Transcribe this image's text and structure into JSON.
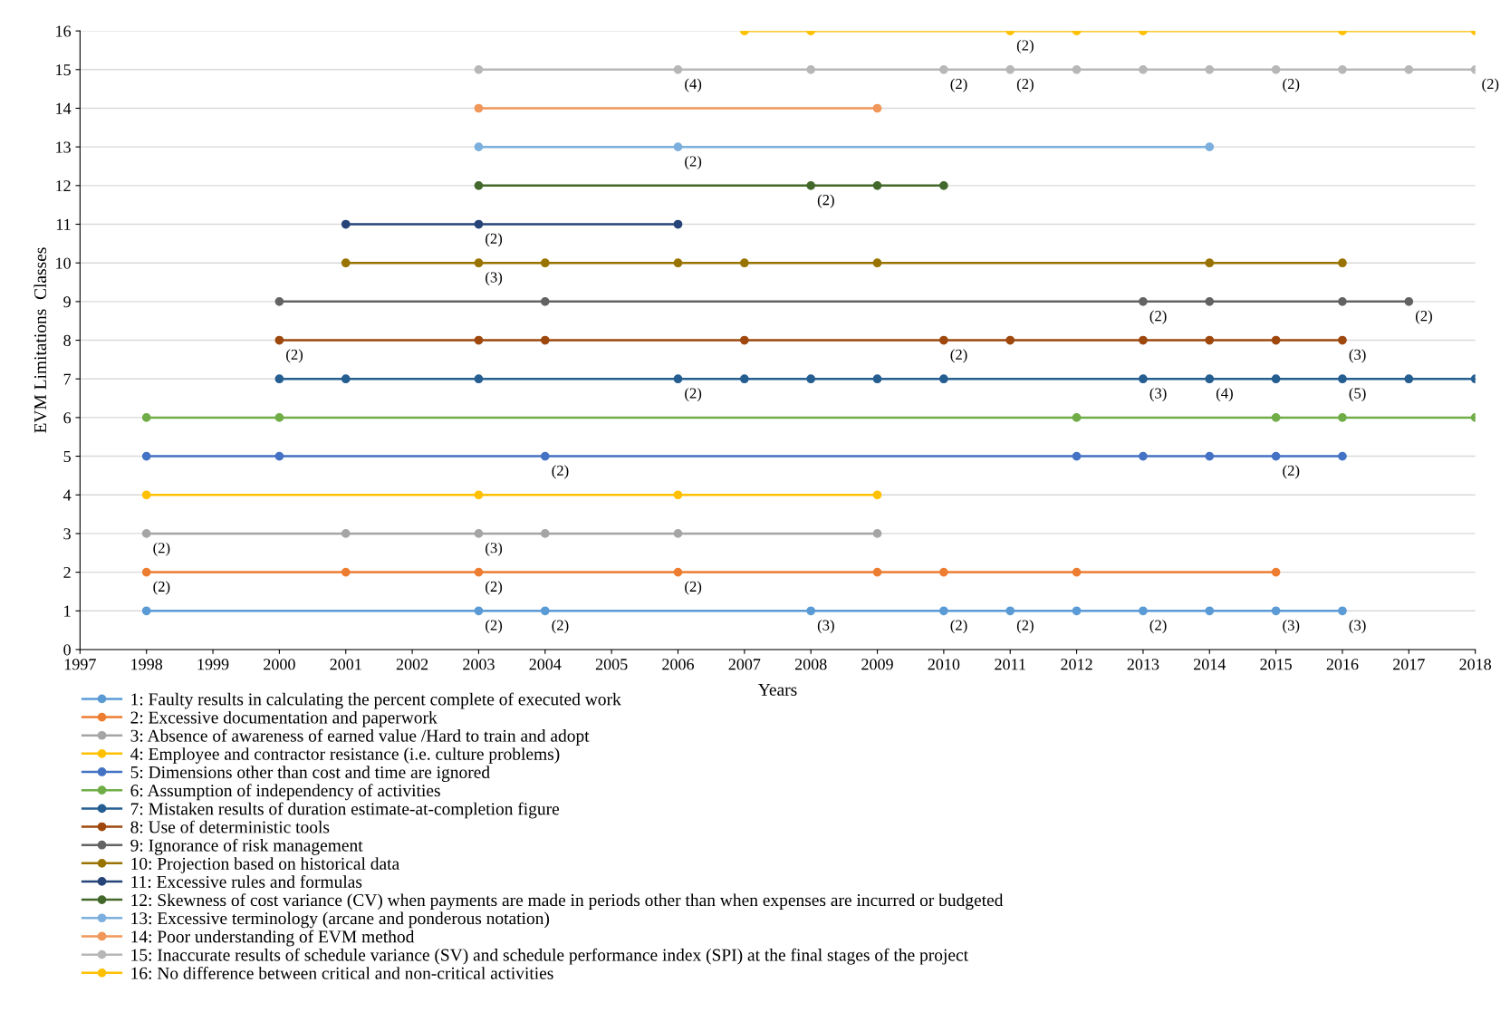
{
  "chart_data": {
    "type": "line",
    "xlabel": "Years",
    "ylabel": "EVM Limitations  Classes",
    "xlim": [
      1997,
      2018
    ],
    "ylim": [
      0,
      16
    ],
    "xticks": [
      1997,
      1998,
      1999,
      2000,
      2001,
      2002,
      2003,
      2004,
      2005,
      2006,
      2007,
      2008,
      2009,
      2010,
      2011,
      2012,
      2013,
      2014,
      2015,
      2016,
      2017,
      2018
    ],
    "yticks": [
      0,
      1,
      2,
      3,
      4,
      5,
      6,
      7,
      8,
      9,
      10,
      11,
      12,
      13,
      14,
      15,
      16
    ],
    "grid": "y",
    "legend": "bottom",
    "marker": "circle",
    "line_style": "solid",
    "series": [
      {
        "name": "1: Faulty results in calculating the percent complete of executed work",
        "color": "#5b9bd5",
        "x": [
          1998,
          2003,
          2004,
          2008,
          2010,
          2011,
          2012,
          2013,
          2014,
          2015,
          2016
        ],
        "values": [
          1,
          1,
          1,
          1,
          1,
          1,
          1,
          1,
          1,
          1,
          1
        ]
      },
      {
        "name": "2: Excessive documentation and paperwork",
        "color": "#ed7d31",
        "x": [
          1998,
          2001,
          2003,
          2006,
          2009,
          2010,
          2012,
          2015
        ],
        "values": [
          2,
          2,
          2,
          2,
          2,
          2,
          2,
          2
        ]
      },
      {
        "name": "3: Absence of awareness of earned value /Hard to train and adopt",
        "color": "#a5a5a5",
        "x": [
          1998,
          2001,
          2003,
          2004,
          2006,
          2009
        ],
        "values": [
          3,
          3,
          3,
          3,
          3,
          3
        ]
      },
      {
        "name": "4: Employee and contractor resistance (i.e. culture problems)",
        "color": "#ffc000",
        "x": [
          1998,
          2003,
          2006,
          2009
        ],
        "values": [
          4,
          4,
          4,
          4
        ]
      },
      {
        "name": "5: Dimensions other than cost and time are ignored",
        "color": "#4472c4",
        "x": [
          1998,
          2000,
          2004,
          2012,
          2013,
          2014,
          2015,
          2016
        ],
        "values": [
          5,
          5,
          5,
          5,
          5,
          5,
          5,
          5
        ]
      },
      {
        "name": "6: Assumption of independency of activities",
        "color": "#70ad47",
        "x": [
          1998,
          2000,
          2012,
          2015,
          2016,
          2018
        ],
        "values": [
          6,
          6,
          6,
          6,
          6,
          6
        ]
      },
      {
        "name": "7: Mistaken results of duration estimate-at-completion figure",
        "color": "#255e91",
        "x": [
          2000,
          2001,
          2003,
          2006,
          2007,
          2008,
          2009,
          2010,
          2013,
          2014,
          2015,
          2016,
          2017,
          2018
        ],
        "values": [
          7,
          7,
          7,
          7,
          7,
          7,
          7,
          7,
          7,
          7,
          7,
          7,
          7,
          7
        ]
      },
      {
        "name": "8: Use of deterministic tools",
        "color": "#9e480e",
        "x": [
          2000,
          2003,
          2004,
          2007,
          2010,
          2011,
          2013,
          2014,
          2015,
          2016
        ],
        "values": [
          8,
          8,
          8,
          8,
          8,
          8,
          8,
          8,
          8,
          8
        ]
      },
      {
        "name": "9: Ignorance of risk management",
        "color": "#636363",
        "x": [
          2000,
          2004,
          2013,
          2014,
          2016,
          2017
        ],
        "values": [
          9,
          9,
          9,
          9,
          9,
          9
        ]
      },
      {
        "name": "10: Projection based on historical data",
        "color": "#997300",
        "x": [
          2001,
          2003,
          2004,
          2006,
          2007,
          2009,
          2014,
          2016
        ],
        "values": [
          10,
          10,
          10,
          10,
          10,
          10,
          10,
          10
        ]
      },
      {
        "name": "11: Excessive rules and formulas",
        "color": "#264478",
        "x": [
          2001,
          2003,
          2006
        ],
        "values": [
          11,
          11,
          11
        ]
      },
      {
        "name": "12: Skewness of cost variance (CV) when payments are made in periods other than when expenses are incurred or budgeted",
        "color": "#43682b",
        "x": [
          2003,
          2008,
          2009,
          2010
        ],
        "values": [
          12,
          12,
          12,
          12
        ]
      },
      {
        "name": "13: Excessive terminology (arcane and ponderous notation)",
        "color": "#7cafdd",
        "x": [
          2003,
          2006,
          2014
        ],
        "values": [
          13,
          13,
          13
        ]
      },
      {
        "name": "14: Poor understanding of EVM method",
        "color": "#f1975a",
        "x": [
          2003,
          2009
        ],
        "values": [
          14,
          14
        ]
      },
      {
        "name": "15: Inaccurate results of schedule variance (SV) and schedule performance index (SPI) at the final stages of the project",
        "color": "#b7b7b7",
        "x": [
          2003,
          2006,
          2008,
          2010,
          2011,
          2012,
          2013,
          2014,
          2015,
          2016,
          2017,
          2018
        ],
        "values": [
          15,
          15,
          15,
          15,
          15,
          15,
          15,
          15,
          15,
          15,
          15,
          15
        ]
      },
      {
        "name": "16: No difference between critical and non-critical activities",
        "color": "#ffc000",
        "x": [
          2007,
          2008,
          2011,
          2012,
          2013,
          2016,
          2018
        ],
        "values": [
          16,
          16,
          16,
          16,
          16,
          16,
          16
        ]
      }
    ],
    "annotations": [
      {
        "text": "(2)",
        "x": 2003,
        "y": 1
      },
      {
        "text": "(2)",
        "x": 2004,
        "y": 1
      },
      {
        "text": "(3)",
        "x": 2008,
        "y": 1
      },
      {
        "text": "(2)",
        "x": 2010,
        "y": 1
      },
      {
        "text": "(2)",
        "x": 2011,
        "y": 1
      },
      {
        "text": "(2)",
        "x": 2013,
        "y": 1
      },
      {
        "text": "(3)",
        "x": 2015,
        "y": 1
      },
      {
        "text": "(3)",
        "x": 2016,
        "y": 1
      },
      {
        "text": "(2)",
        "x": 1998,
        "y": 2
      },
      {
        "text": "(2)",
        "x": 2003,
        "y": 2
      },
      {
        "text": "(2)",
        "x": 2006,
        "y": 2
      },
      {
        "text": "(2)",
        "x": 1998,
        "y": 3
      },
      {
        "text": "(3)",
        "x": 2003,
        "y": 3
      },
      {
        "text": "(2)",
        "x": 2004,
        "y": 5
      },
      {
        "text": "(2)",
        "x": 2015,
        "y": 5
      },
      {
        "text": "(2)",
        "x": 2006,
        "y": 7
      },
      {
        "text": "(3)",
        "x": 2013,
        "y": 7
      },
      {
        "text": "(4)",
        "x": 2014,
        "y": 7
      },
      {
        "text": "(5)",
        "x": 2016,
        "y": 7
      },
      {
        "text": "(2)",
        "x": 2000,
        "y": 8
      },
      {
        "text": "(2)",
        "x": 2010,
        "y": 8
      },
      {
        "text": "(3)",
        "x": 2016,
        "y": 8
      },
      {
        "text": "(2)",
        "x": 2013,
        "y": 9
      },
      {
        "text": "(2)",
        "x": 2017,
        "y": 9
      },
      {
        "text": "(3)",
        "x": 2003,
        "y": 10
      },
      {
        "text": "(2)",
        "x": 2003,
        "y": 11
      },
      {
        "text": "(2)",
        "x": 2008,
        "y": 12
      },
      {
        "text": "(2)",
        "x": 2006,
        "y": 13
      },
      {
        "text": "(4)",
        "x": 2006,
        "y": 15
      },
      {
        "text": "(2)",
        "x": 2010,
        "y": 15
      },
      {
        "text": "(2)",
        "x": 2011,
        "y": 15
      },
      {
        "text": "(2)",
        "x": 2015,
        "y": 15
      },
      {
        "text": "(2)",
        "x": 2018,
        "y": 15
      },
      {
        "text": "(2)",
        "x": 2011,
        "y": 16
      }
    ]
  }
}
